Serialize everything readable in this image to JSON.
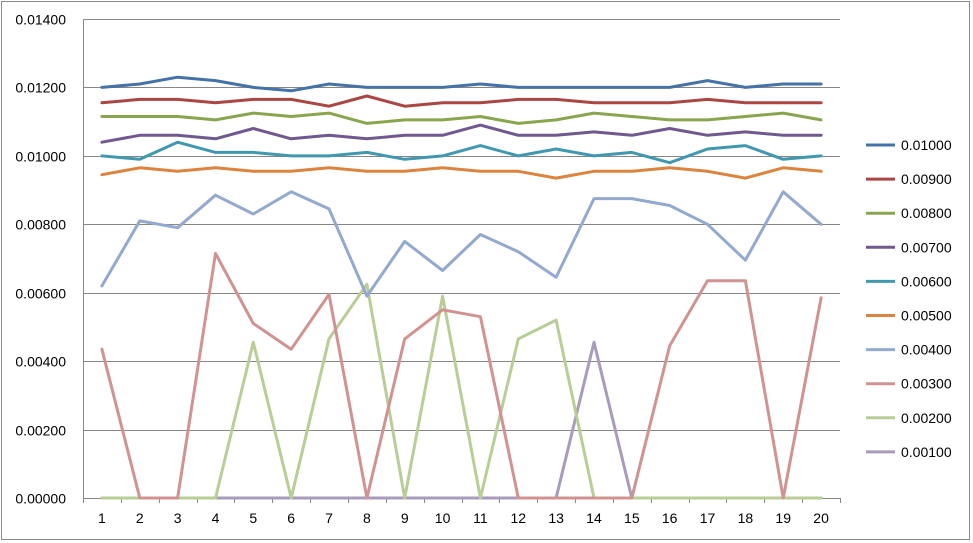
{
  "chart_data": {
    "type": "line",
    "title": "",
    "xlabel": "",
    "ylabel": "",
    "x": [
      1,
      2,
      3,
      4,
      5,
      6,
      7,
      8,
      9,
      10,
      11,
      12,
      13,
      14,
      15,
      16,
      17,
      18,
      19,
      20
    ],
    "x_tick_labels": [
      "1",
      "2",
      "3",
      "4",
      "5",
      "6",
      "7",
      "8",
      "9",
      "10",
      "11",
      "12",
      "13",
      "14",
      "15",
      "16",
      "17",
      "18",
      "19",
      "20"
    ],
    "ylim": [
      0,
      0.014
    ],
    "y_ticks": [
      0,
      0.002,
      0.004,
      0.006,
      0.008,
      0.01,
      0.012,
      0.014
    ],
    "y_tick_labels": [
      "0.00000",
      "0.00200",
      "0.00400",
      "0.00600",
      "0.00800",
      "0.01000",
      "0.01200",
      "0.01400"
    ],
    "grid": "horizontal",
    "legend_position": "right",
    "series": [
      {
        "name": "0.01000",
        "color": "#4572a7",
        "values": [
          0.012,
          0.0121,
          0.0123,
          0.0122,
          0.012,
          0.0119,
          0.0121,
          0.012,
          0.012,
          0.012,
          0.0121,
          0.012,
          0.012,
          0.012,
          0.012,
          0.012,
          0.0122,
          0.012,
          0.0121,
          0.0121
        ]
      },
      {
        "name": "0.00900",
        "color": "#aa4643",
        "values": [
          0.01155,
          0.01165,
          0.01165,
          0.01155,
          0.01165,
          0.01165,
          0.01145,
          0.01175,
          0.01145,
          0.01155,
          0.01155,
          0.01165,
          0.01165,
          0.01155,
          0.01155,
          0.01155,
          0.01165,
          0.01155,
          0.01155,
          0.01155
        ]
      },
      {
        "name": "0.00800",
        "color": "#89a54e",
        "values": [
          0.01115,
          0.01115,
          0.01115,
          0.01105,
          0.01125,
          0.01115,
          0.01125,
          0.01095,
          0.01105,
          0.01105,
          0.01115,
          0.01095,
          0.01105,
          0.01125,
          0.01115,
          0.01105,
          0.01105,
          0.01115,
          0.01125,
          0.01105
        ]
      },
      {
        "name": "0.00700",
        "color": "#71588f",
        "values": [
          0.0104,
          0.0106,
          0.0106,
          0.0105,
          0.0108,
          0.0105,
          0.0106,
          0.0105,
          0.0106,
          0.0106,
          0.0109,
          0.0106,
          0.0106,
          0.0107,
          0.0106,
          0.0108,
          0.0106,
          0.0107,
          0.0106,
          0.0106
        ]
      },
      {
        "name": "0.00600",
        "color": "#4198af",
        "values": [
          0.01,
          0.0099,
          0.0104,
          0.0101,
          0.0101,
          0.01,
          0.01,
          0.0101,
          0.0099,
          0.01,
          0.0103,
          0.01,
          0.0102,
          0.01,
          0.0101,
          0.0098,
          0.0102,
          0.0103,
          0.0099,
          0.01
        ]
      },
      {
        "name": "0.00500",
        "color": "#db843d",
        "values": [
          0.00945,
          0.00965,
          0.00955,
          0.00965,
          0.00955,
          0.00955,
          0.00965,
          0.00955,
          0.00955,
          0.00965,
          0.00955,
          0.00955,
          0.00935,
          0.00955,
          0.00955,
          0.00965,
          0.00955,
          0.00935,
          0.00965,
          0.00955
        ]
      },
      {
        "name": "0.00400",
        "color": "#93a9cf",
        "values": [
          0.0062,
          0.0081,
          0.0079,
          0.00885,
          0.0083,
          0.00895,
          0.00845,
          0.0059,
          0.0075,
          0.00665,
          0.0077,
          0.0072,
          0.00645,
          0.00875,
          0.00875,
          0.00855,
          0.008,
          0.00695,
          0.00895,
          0.008
        ]
      },
      {
        "name": "0.00300",
        "color": "#d19392",
        "values": [
          0.00435,
          0,
          0,
          0.00715,
          0.0051,
          0.00435,
          0.00595,
          0,
          0.00465,
          0.0055,
          0.0053,
          0,
          0,
          0,
          0,
          0.00445,
          0.00635,
          0.00635,
          0,
          0.00585
        ]
      },
      {
        "name": "0.00200",
        "color": "#b9cd96",
        "values": [
          0,
          0,
          0,
          0,
          0.00455,
          0,
          0.00465,
          0.00625,
          0,
          0.0059,
          0,
          0.00465,
          0.0052,
          0,
          0,
          0,
          0,
          0,
          0,
          0
        ]
      },
      {
        "name": "0.00100",
        "color": "#a99bbd",
        "values": [
          0,
          0,
          0,
          0,
          0,
          0,
          0,
          0,
          0,
          0,
          0,
          0,
          0,
          0.00455,
          0,
          0,
          0,
          0,
          0,
          0
        ]
      }
    ]
  }
}
